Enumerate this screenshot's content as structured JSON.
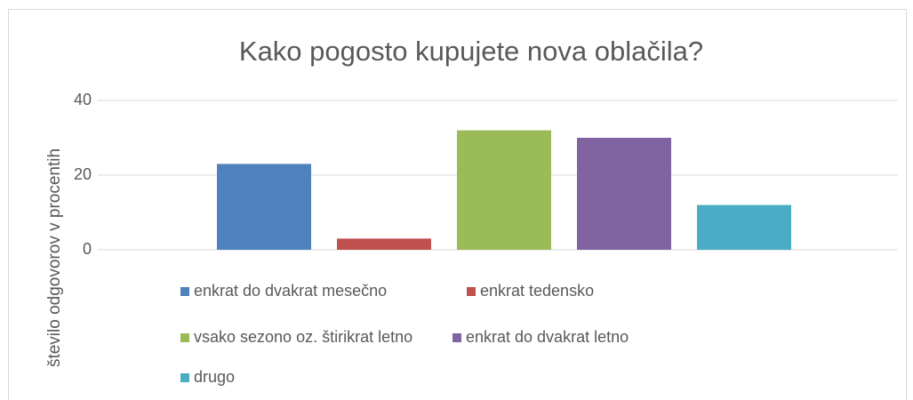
{
  "chart_data": {
    "type": "bar",
    "title": "Kako pogosto kupujete nova oblačila?",
    "y_label": "število odgovorov v procentih",
    "categories": [
      null
    ],
    "series": [
      {
        "name": "enkrat do dvakrat mesečno",
        "color": "#4f81bd",
        "values": [
          23
        ]
      },
      {
        "name": "enkrat tedensko",
        "color": "#c0504d",
        "values": [
          3
        ]
      },
      {
        "name": "vsako sezono oz. štirikrat letno",
        "color": "#9bbb59",
        "values": [
          32
        ]
      },
      {
        "name": "enkrat do dvakrat letno",
        "color": "#8064a2",
        "values": [
          30
        ]
      },
      {
        "name": "drugo",
        "color": "#4bacc6",
        "values": [
          12
        ]
      }
    ],
    "ylim": [
      0,
      40
    ],
    "yticks": [
      0,
      20,
      40
    ],
    "grid": true
  }
}
